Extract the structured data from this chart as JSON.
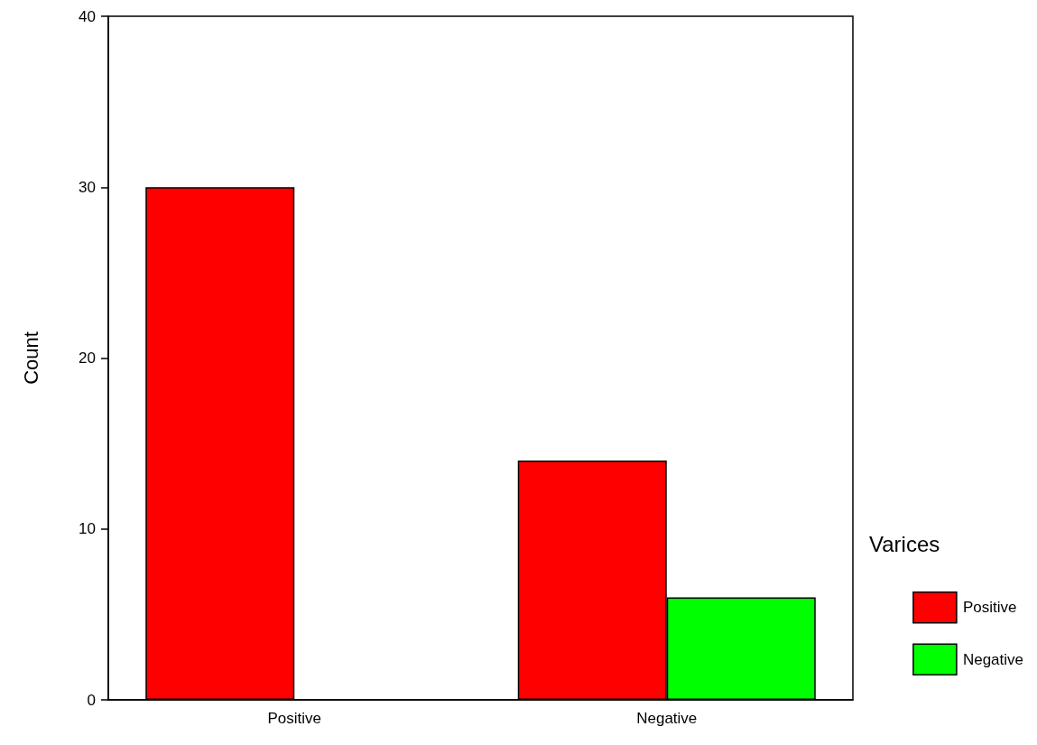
{
  "chart_data": {
    "type": "bar",
    "ylabel": "Count",
    "legend_title": "Varices",
    "categories": [
      "Positive",
      "Negative"
    ],
    "series": [
      {
        "name": "Positive",
        "color": "#ff0000",
        "values": [
          30,
          14
        ]
      },
      {
        "name": "Negative",
        "color": "#00ff00",
        "values": [
          null,
          6
        ]
      }
    ],
    "ylim": [
      0,
      40
    ],
    "yticks": [
      0,
      10,
      20,
      30,
      40
    ],
    "grid": false,
    "legend": "right"
  }
}
